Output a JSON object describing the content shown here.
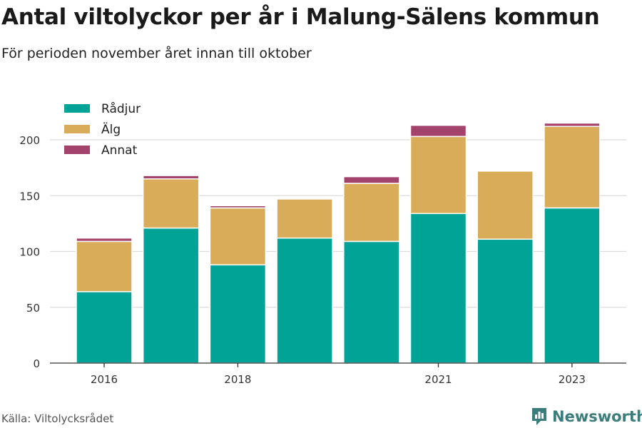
{
  "title": "Antal viltolyckor per år i Malung-Sälens kommun",
  "subtitle": "För perioden november året innan till oktober",
  "source": "Källa: Viltolycksrådet",
  "brand": "Newsworthy",
  "chart_data": {
    "type": "bar",
    "stacked": true,
    "title": "Antal viltolyckor per år i Malung-Sälens kommun",
    "subtitle": "För perioden november året innan till oktober",
    "x": [
      2016,
      2017,
      2018,
      2019,
      2020,
      2021,
      2022,
      2023
    ],
    "x_tick_labels": [
      "2016",
      "2018",
      "2021",
      "2023"
    ],
    "x_tick_values": [
      2016,
      2018,
      2021,
      2023
    ],
    "y_ticks": [
      0,
      50,
      100,
      150,
      200
    ],
    "ylim": [
      0,
      220
    ],
    "grid": true,
    "legend_position": "top-left",
    "series": [
      {
        "name": "Rådjur",
        "color": "#00a396",
        "values": [
          64,
          121,
          88,
          112,
          109,
          134,
          111,
          139
        ]
      },
      {
        "name": "Älg",
        "color": "#d9ac59",
        "values": [
          45,
          44,
          51,
          35,
          52,
          69,
          61,
          73
        ]
      },
      {
        "name": "Annat",
        "color": "#a3426a",
        "values": [
          3,
          3,
          2,
          0,
          6,
          10,
          0,
          3
        ]
      }
    ]
  }
}
